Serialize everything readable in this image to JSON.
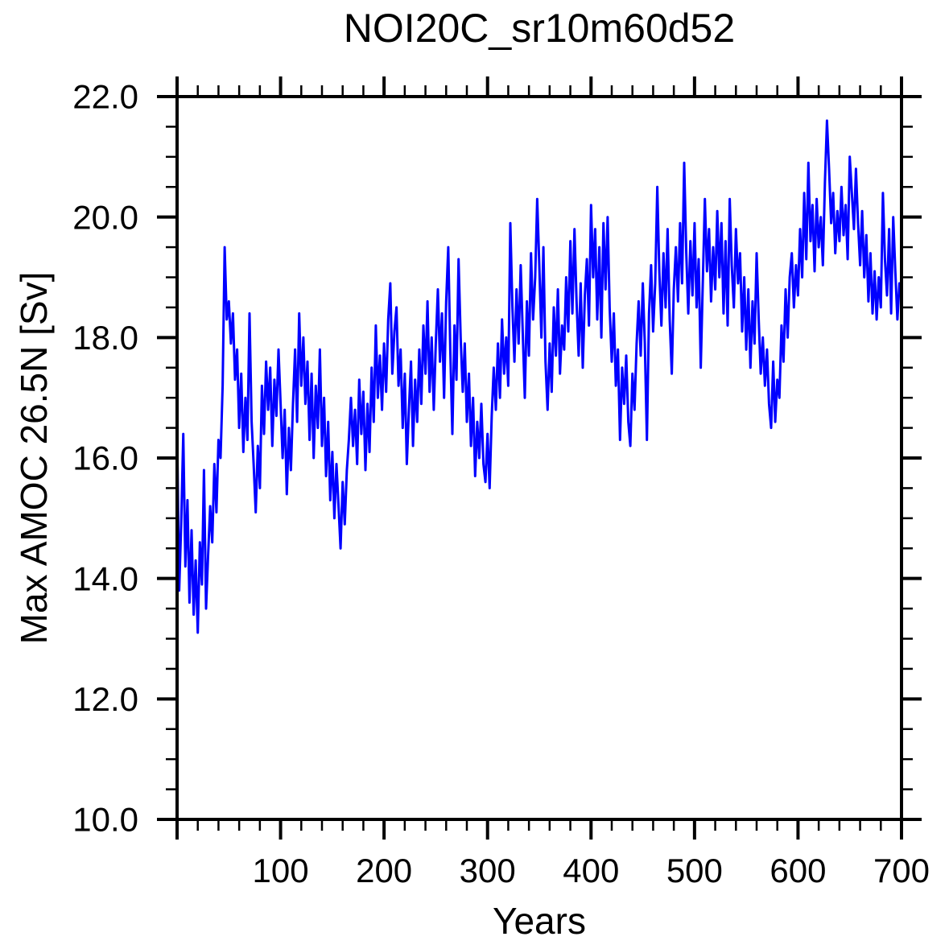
{
  "page": {
    "background": "#ffffff"
  },
  "chart_data": {
    "type": "line",
    "title": "NOI20C_sr10m60d52",
    "xlabel": "Years",
    "ylabel": "Max AMOC 26.5N [Sv]",
    "xlim": [
      0,
      700
    ],
    "ylim": [
      10.0,
      22.0
    ],
    "grid": false,
    "legend": "none",
    "x_major_tick_step": 100,
    "x_minor_tick_step": 20,
    "y_major_tick_step": 2.0,
    "y_minor_tick_step": 0.5,
    "x_tick_label_values": [
      100,
      200,
      300,
      400,
      500,
      600,
      700
    ],
    "x_tick_labels": [
      "100",
      "200",
      "300",
      "400",
      "500",
      "600",
      "700"
    ],
    "y_tick_label_values": [
      10,
      12,
      14,
      16,
      18,
      20,
      22
    ],
    "y_tick_labels": [
      "10.0",
      "12.0",
      "14.0",
      "16.0",
      "18.0",
      "20.0",
      "22.0"
    ],
    "axis_color": "#000000",
    "line_color": "#0000FF",
    "series": [
      {
        "name": "Max AMOC 26.5N",
        "x_start": 0,
        "x_step": 2,
        "values": [
          16.5,
          13.8,
          14.9,
          16.4,
          14.2,
          15.3,
          13.6,
          14.8,
          13.4,
          14.3,
          13.1,
          14.6,
          13.9,
          15.8,
          13.5,
          14.4,
          15.2,
          14.6,
          15.9,
          15.1,
          16.3,
          16.0,
          17.2,
          19.5,
          18.3,
          18.6,
          17.9,
          18.4,
          17.3,
          17.8,
          16.5,
          17.4,
          16.1,
          17.0,
          16.3,
          18.4,
          16.6,
          15.9,
          15.1,
          16.2,
          15.5,
          17.2,
          16.4,
          17.6,
          16.8,
          17.5,
          16.2,
          17.3,
          16.7,
          17.8,
          16.9,
          16.0,
          16.8,
          15.4,
          16.5,
          15.8,
          16.9,
          17.8,
          16.6,
          18.4,
          17.2,
          18.0,
          16.9,
          17.6,
          16.3,
          17.4,
          16.0,
          17.2,
          16.5,
          17.8,
          16.2,
          17.0,
          15.7,
          16.6,
          15.3,
          16.1,
          15.0,
          15.9,
          15.2,
          14.5,
          15.6,
          14.9,
          15.8,
          16.3,
          17.0,
          16.2,
          16.8,
          15.9,
          17.3,
          16.4,
          17.1,
          15.8,
          16.9,
          16.1,
          17.5,
          16.6,
          18.2,
          17.0,
          17.7,
          16.8,
          17.9,
          17.1,
          18.3,
          18.9,
          17.4,
          18.1,
          18.5,
          17.2,
          17.8,
          16.5,
          17.4,
          15.9,
          16.8,
          17.6,
          16.2,
          17.3,
          16.6,
          17.8,
          16.9,
          18.2,
          17.4,
          18.6,
          17.1,
          18.0,
          16.8,
          17.9,
          18.8,
          17.6,
          18.4,
          17.0,
          18.6,
          19.5,
          17.8,
          16.4,
          18.2,
          17.3,
          19.3,
          18.0,
          17.1,
          17.9,
          16.6,
          17.4,
          16.2,
          17.0,
          15.7,
          16.6,
          16.0,
          16.9,
          15.9,
          15.6,
          16.4,
          15.5,
          16.7,
          17.5,
          16.8,
          17.9,
          17.0,
          18.3,
          17.4,
          18.0,
          17.2,
          19.9,
          18.5,
          17.6,
          18.8,
          17.9,
          19.2,
          18.1,
          17.0,
          18.6,
          17.7,
          19.4,
          18.3,
          19.0,
          20.3,
          19.2,
          18.0,
          19.5,
          17.6,
          16.8,
          17.9,
          17.1,
          18.5,
          17.7,
          18.8,
          17.4,
          18.2,
          17.8,
          19.0,
          18.1,
          19.6,
          18.4,
          19.8,
          18.6,
          17.7,
          18.9,
          17.5,
          18.7,
          19.3,
          18.2,
          20.2,
          19.0,
          19.8,
          18.3,
          19.5,
          18.0,
          19.9,
          18.8,
          20.0,
          18.5,
          17.6,
          18.4,
          17.2,
          17.8,
          16.3,
          17.5,
          16.9,
          17.7,
          16.6,
          16.2,
          17.4,
          16.8,
          17.9,
          18.6,
          17.7,
          18.9,
          17.9,
          16.3,
          18.4,
          19.2,
          18.1,
          18.9,
          20.5,
          19.1,
          18.2,
          19.4,
          18.5,
          19.8,
          18.3,
          17.4,
          18.8,
          19.5,
          18.6,
          19.9,
          18.9,
          20.9,
          19.4,
          18.4,
          19.6,
          18.7,
          19.9,
          18.5,
          19.3,
          17.5,
          18.9,
          20.3,
          19.1,
          19.8,
          18.6,
          19.5,
          18.8,
          20.1,
          19.0,
          19.9,
          18.4,
          19.6,
          18.2,
          20.3,
          19.2,
          18.5,
          19.8,
          18.9,
          19.4,
          18.1,
          19.0,
          17.8,
          18.8,
          17.5,
          18.6,
          17.9,
          19.4,
          18.3,
          17.4,
          18.0,
          17.2,
          17.8,
          16.9,
          16.5,
          17.6,
          16.6,
          17.3,
          17.0,
          18.2,
          17.6,
          18.8,
          18.0,
          19.0,
          19.4,
          18.5,
          19.2,
          18.7,
          19.8,
          19.0,
          20.4,
          19.3,
          20.9,
          19.6,
          20.2,
          19.1,
          20.3,
          19.5,
          20.0,
          19.2,
          20.6,
          21.6,
          20.8,
          19.9,
          20.4,
          19.4,
          20.1,
          19.6,
          20.5,
          19.7,
          20.2,
          19.3,
          21.0,
          20.4,
          19.8,
          20.8,
          19.9,
          19.2,
          20.1,
          19.0,
          19.7,
          18.6,
          19.4,
          18.4,
          19.1,
          18.3,
          19.0,
          18.5,
          20.4,
          19.3,
          18.7,
          19.8,
          18.4,
          20.0,
          19.1,
          18.3,
          18.9,
          18.8
        ]
      }
    ]
  }
}
